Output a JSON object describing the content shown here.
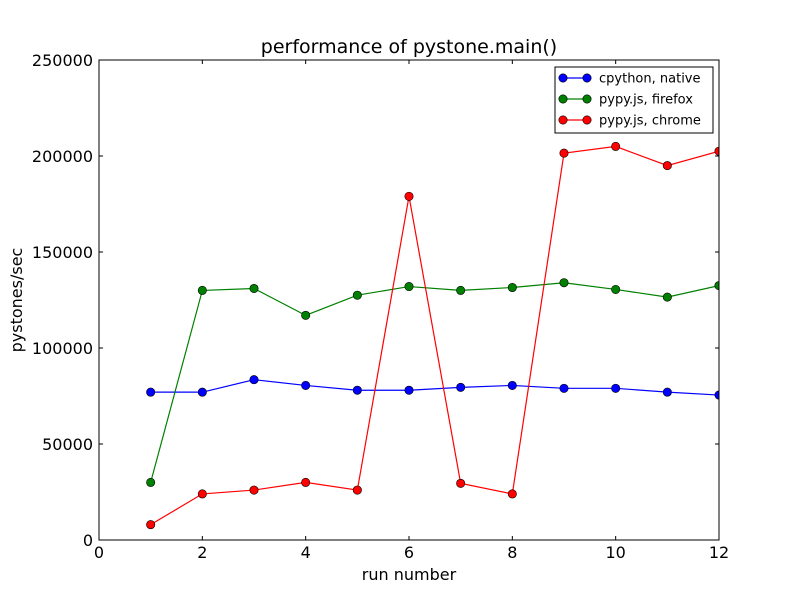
{
  "chart_data": {
    "type": "line",
    "title": "performance of pystone.main()",
    "xlabel": "run number",
    "ylabel": "pystones/sec",
    "xlim": [
      0,
      12
    ],
    "ylim": [
      0,
      250000
    ],
    "xticks": [
      0,
      2,
      4,
      6,
      8,
      10,
      12
    ],
    "yticks": [
      0,
      50000,
      100000,
      150000,
      200000,
      250000
    ],
    "grid": false,
    "legend_position": "top-right",
    "x": [
      1,
      2,
      3,
      4,
      5,
      6,
      7,
      8,
      9,
      10,
      11,
      12
    ],
    "series": [
      {
        "name": "cpython, native",
        "color": "#0000ff",
        "values": [
          77000,
          77000,
          83500,
          80500,
          78000,
          78000,
          79500,
          80500,
          79000,
          79000,
          77000,
          75500
        ]
      },
      {
        "name": "pypy.js, firefox",
        "color": "#008000",
        "values": [
          30000,
          130000,
          131000,
          117000,
          127500,
          132000,
          130000,
          131500,
          134000,
          130500,
          126500,
          132500
        ]
      },
      {
        "name": "pypy.js, chrome",
        "color": "#ff0000",
        "values": [
          8000,
          24000,
          26000,
          30000,
          26000,
          179000,
          29500,
          24000,
          201500,
          205000,
          195000,
          202500
        ]
      }
    ]
  }
}
